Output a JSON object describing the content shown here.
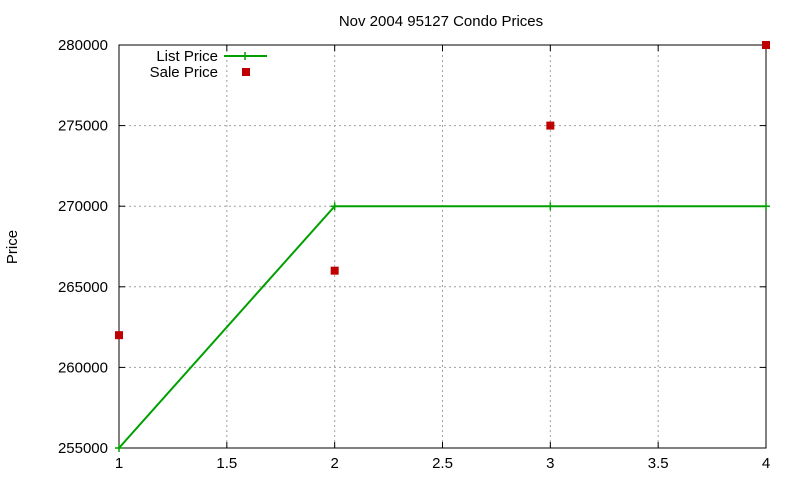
{
  "chart_data": {
    "type": "line",
    "title": "Nov 2004 95127 Condo Prices",
    "xlabel": "",
    "ylabel": "Price",
    "xlim": [
      1,
      4
    ],
    "ylim": [
      255000,
      280000
    ],
    "x_ticks": [
      1,
      1.5,
      2,
      2.5,
      3,
      3.5,
      4
    ],
    "x_tick_labels": [
      "1",
      "1.5",
      "2",
      "2.5",
      "3",
      "3.5",
      "4"
    ],
    "y_ticks": [
      255000,
      260000,
      265000,
      270000,
      275000,
      280000
    ],
    "y_tick_labels": [
      "255000",
      "260000",
      "265000",
      "270000",
      "275000",
      "280000"
    ],
    "grid": true,
    "legend_position": "top-left",
    "series": [
      {
        "name": "List Price",
        "style": "line-with-plus-markers",
        "color": "#00a000",
        "x": [
          1,
          2,
          3,
          4
        ],
        "values": [
          255000,
          270000,
          270000,
          270000
        ]
      },
      {
        "name": "Sale Price",
        "style": "square-markers",
        "color": "#c00000",
        "x": [
          1,
          2,
          3,
          4
        ],
        "values": [
          262000,
          266000,
          275000,
          280000
        ]
      }
    ]
  }
}
